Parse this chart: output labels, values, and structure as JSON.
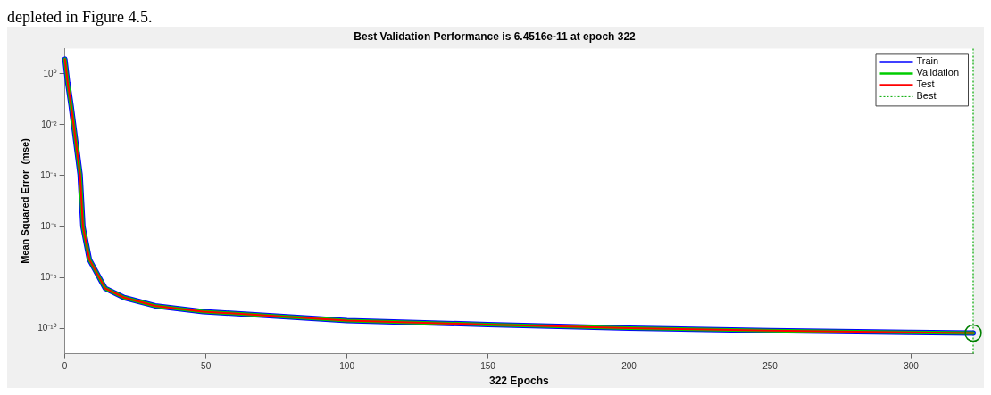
{
  "chart_data": {
    "type": "line",
    "title": "Best Validation Performance is 6.4516e-11 at epoch 322",
    "xlabel": "322 Epochs",
    "ylabel": "Mean Squared Error  (mse)",
    "annotations": [
      "depleted in Figure 4.5."
    ],
    "series": [
      {
        "name": "Train",
        "color": "#0000ff",
        "x": [
          0,
          1,
          2.2,
          5.4,
          6.4,
          8.7,
          14.3,
          21,
          32,
          49,
          75,
          100,
          150,
          200,
          250,
          300,
          322
        ],
        "values": [
          3.8,
          0.45,
          0.058,
          0.00011,
          1e-06,
          5e-08,
          3.7e-09,
          1.6e-09,
          7.6e-10,
          4.5e-10,
          3e-10,
          2e-10,
          1.4e-10,
          1e-10,
          8e-11,
          6.8e-11,
          6.4516e-11
        ]
      },
      {
        "name": "Validation",
        "color": "#00cc00",
        "x": [
          0,
          1,
          2.2,
          5.4,
          6.4,
          8.7,
          14.3,
          21,
          32,
          49,
          75,
          100,
          150,
          200,
          250,
          300,
          322
        ],
        "values": [
          3.8,
          0.45,
          0.058,
          0.00011,
          1e-06,
          5e-08,
          3.7e-09,
          1.6e-09,
          7.6e-10,
          4.5e-10,
          3e-10,
          2e-10,
          1.4e-10,
          1e-10,
          8e-11,
          6.8e-11,
          6.4516e-11
        ]
      },
      {
        "name": "Test",
        "color": "#ff0000",
        "x": [
          0,
          1,
          2.2,
          5.4,
          6.4,
          8.7,
          14.3,
          21,
          32,
          49,
          75,
          100,
          150,
          200,
          250,
          300,
          322
        ],
        "values": [
          3.8,
          0.45,
          0.058,
          0.00011,
          1e-06,
          5e-08,
          3.7e-09,
          1.6e-09,
          7.6e-10,
          4.5e-10,
          3e-10,
          2e-10,
          1.4e-10,
          1e-10,
          8e-11,
          6.8e-11,
          6.4516e-11
        ]
      },
      {
        "type": "scatter",
        "color": "#008000",
        "marker": "circle",
        "x": [
          322
        ],
        "values": [
          6.4516e-11
        ]
      }
    ],
    "xlim": [
      0,
      322
    ],
    "ylim": [
      1e-11,
      10
    ],
    "xticks": [
      0,
      50,
      100,
      150,
      200,
      250,
      300
    ],
    "yticks": [
      {
        "value": 1,
        "label": "10⁰"
      },
      {
        "value": 0.01,
        "label": "10⁻²"
      },
      {
        "value": 0.0001,
        "label": "10⁻⁴"
      },
      {
        "value": 1e-06,
        "label": "10⁻⁶"
      },
      {
        "value": 1e-08,
        "label": "10⁻⁸"
      },
      {
        "value": 1e-10,
        "label": "10⁻¹⁰"
      }
    ],
    "ref_lines": [
      {
        "axis": "y",
        "value": 6.4516e-11,
        "label": "Best",
        "color": "#00aa00",
        "line_style": "dotted"
      },
      {
        "axis": "x",
        "value": 322,
        "color": "#00aa00",
        "line_style": "dotted"
      }
    ],
    "log": "y",
    "grid": false,
    "legend": "top right",
    "marker": "none",
    "line_style": "solid"
  }
}
